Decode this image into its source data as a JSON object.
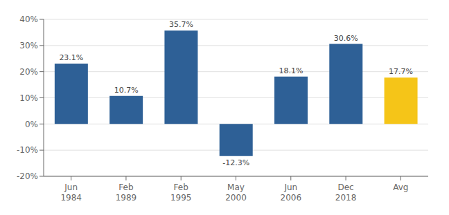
{
  "chart_data": {
    "type": "bar",
    "categories": [
      "Jun\n1984",
      "Feb\n1989",
      "Feb\n1995",
      "May\n2000",
      "Jun\n2006",
      "Dec\n2018",
      "Avg"
    ],
    "values": [
      23.1,
      10.7,
      35.7,
      -12.3,
      18.1,
      30.6,
      17.7
    ],
    "value_labels": [
      "23.1%",
      "10.7%",
      "35.7%",
      "-12.3%",
      "18.1%",
      "30.6%",
      "17.7%"
    ],
    "data_labels": true,
    "colors": [
      "#2E6096",
      "#2E6096",
      "#2E6096",
      "#2E6096",
      "#2E6096",
      "#2E6096",
      "#F5C518"
    ],
    "ylim": [
      -20,
      40
    ],
    "yticks": [
      {
        "value": -20,
        "label": "-20%"
      },
      {
        "value": -10,
        "label": "-10%"
      },
      {
        "value": 0,
        "label": "0%"
      },
      {
        "value": 10,
        "label": "10%"
      },
      {
        "value": 20,
        "label": "20%"
      },
      {
        "value": 30,
        "label": "30%"
      },
      {
        "value": 40,
        "label": "40%"
      }
    ],
    "grid": true
  }
}
